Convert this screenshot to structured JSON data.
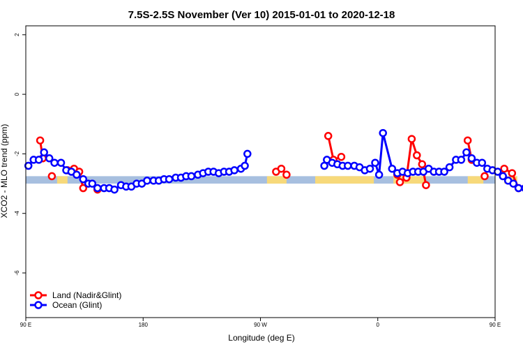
{
  "chart_data": {
    "type": "line",
    "title": "7.5S-2.5S November (Ver 10)   2015-01-01 to 2020-12-18",
    "xlabel": "Longitude (deg E)",
    "ylabel": "XCO2 - MLO trend (ppm)",
    "xlim": [
      90,
      450
    ],
    "ylim": [
      -7.5,
      2.3
    ],
    "x_ticks": [
      {
        "value": 90,
        "label": "90 E"
      },
      {
        "value": 180,
        "label": "180"
      },
      {
        "value": 270,
        "label": "90 W"
      },
      {
        "value": 360,
        "label": "0"
      },
      {
        "value": 450,
        "label": "90 E"
      },
      {
        "value": 540,
        "label": "180"
      }
    ],
    "y_ticks": [
      {
        "value": 2,
        "label": "2"
      },
      {
        "value": 0,
        "label": "0"
      },
      {
        "value": -2,
        "label": "-2"
      },
      {
        "value": -4,
        "label": "-4"
      },
      {
        "value": -6,
        "label": "-6"
      }
    ],
    "grid": false,
    "legend_position": "bottom-left",
    "band": {
      "y_min": -3.0,
      "y_max": -2.75,
      "ocean_color": "#A7BFDF",
      "land_color": "#F7D97A"
    },
    "land_segments": [
      [
        114,
        122
      ],
      [
        275,
        290
      ],
      [
        312,
        357
      ],
      [
        372,
        396
      ],
      [
        429,
        441
      ],
      [
        457,
        467
      ]
    ],
    "series": [
      {
        "name": "Land (Nadir&Glint)",
        "color": "#FF0000",
        "segments": [
          [
            [
              101,
              -1.55
            ],
            [
              103,
              -2.15
            ]
          ],
          [
            [
              110,
              -2.75
            ]
          ],
          [
            [
              122,
              -2.55
            ],
            [
              127,
              -2.5
            ],
            [
              131,
              -2.6
            ],
            [
              134,
              -3.15
            ]
          ],
          [
            [
              145,
              -3.2
            ]
          ],
          [
            [
              282,
              -2.6
            ],
            [
              286,
              -2.5
            ],
            [
              290,
              -2.7
            ]
          ],
          [
            [
              322,
              -1.4
            ],
            [
              326,
              -2.2
            ],
            [
              332,
              -2.1
            ]
          ],
          [
            [
              375,
              -2.7
            ],
            [
              377,
              -2.95
            ],
            [
              382,
              -2.8
            ],
            [
              386,
              -1.5
            ],
            [
              390,
              -2.05
            ],
            [
              394,
              -2.35
            ],
            [
              397,
              -3.05
            ]
          ],
          [
            [
              429,
              -1.55
            ],
            [
              432,
              -2.2
            ]
          ],
          [
            [
              442,
              -2.75
            ]
          ],
          [
            [
              457,
              -2.5
            ],
            [
              463,
              -2.65
            ],
            [
              468,
              -3.15
            ]
          ],
          [
            [
              475,
              -3.2
            ]
          ]
        ]
      },
      {
        "name": "Ocean (Glint)",
        "color": "#0000FF",
        "segments": [
          [
            [
              92,
              -2.4
            ],
            [
              96,
              -2.2
            ],
            [
              100,
              -2.2
            ],
            [
              104,
              -1.95
            ],
            [
              108,
              -2.15
            ],
            [
              112,
              -2.3
            ],
            [
              117,
              -2.3
            ],
            [
              121,
              -2.55
            ],
            [
              125,
              -2.6
            ],
            [
              129,
              -2.7
            ],
            [
              134,
              -2.85
            ],
            [
              138,
              -3.0
            ],
            [
              141,
              -3.0
            ],
            [
              145,
              -3.15
            ],
            [
              150,
              -3.15
            ],
            [
              154,
              -3.15
            ],
            [
              158,
              -3.2
            ],
            [
              163,
              -3.05
            ],
            [
              167,
              -3.1
            ],
            [
              171,
              -3.1
            ],
            [
              175,
              -3.0
            ],
            [
              179,
              -3.0
            ],
            [
              183,
              -2.9
            ],
            [
              188,
              -2.9
            ],
            [
              192,
              -2.9
            ],
            [
              196,
              -2.85
            ],
            [
              200,
              -2.85
            ],
            [
              205,
              -2.8
            ],
            [
              209,
              -2.8
            ],
            [
              213,
              -2.75
            ],
            [
              217,
              -2.75
            ],
            [
              222,
              -2.7
            ],
            [
              226,
              -2.65
            ],
            [
              230,
              -2.6
            ],
            [
              234,
              -2.6
            ],
            [
              238,
              -2.65
            ],
            [
              242,
              -2.6
            ],
            [
              246,
              -2.6
            ],
            [
              250,
              -2.55
            ],
            [
              255,
              -2.5
            ],
            [
              258,
              -2.4
            ],
            [
              260,
              -2.0
            ]
          ],
          [
            [
              319,
              -2.4
            ],
            [
              321,
              -2.2
            ],
            [
              325,
              -2.3
            ],
            [
              329,
              -2.35
            ],
            [
              333,
              -2.4
            ],
            [
              337,
              -2.4
            ],
            [
              342,
              -2.4
            ],
            [
              346,
              -2.45
            ],
            [
              350,
              -2.55
            ],
            [
              354,
              -2.5
            ],
            [
              358,
              -2.3
            ],
            [
              361,
              -2.7
            ],
            [
              364,
              -1.3
            ],
            [
              371,
              -2.5
            ],
            [
              375,
              -2.65
            ],
            [
              379,
              -2.6
            ],
            [
              383,
              -2.65
            ],
            [
              387,
              -2.6
            ],
            [
              391,
              -2.6
            ],
            [
              395,
              -2.6
            ],
            [
              399,
              -2.5
            ],
            [
              403,
              -2.6
            ],
            [
              407,
              -2.6
            ],
            [
              411,
              -2.6
            ],
            [
              415,
              -2.45
            ],
            [
              420,
              -2.2
            ],
            [
              424,
              -2.2
            ],
            [
              428,
              -1.95
            ],
            [
              432,
              -2.15
            ],
            [
              436,
              -2.3
            ],
            [
              440,
              -2.3
            ],
            [
              444,
              -2.5
            ],
            [
              448,
              -2.55
            ],
            [
              452,
              -2.6
            ],
            [
              456,
              -2.75
            ],
            [
              460,
              -2.9
            ],
            [
              464,
              -3.0
            ],
            [
              468,
              -3.15
            ],
            [
              473,
              -3.15
            ],
            [
              477,
              -3.15
            ],
            [
              481,
              -3.2
            ],
            [
              485,
              -3.1
            ]
          ]
        ]
      }
    ]
  }
}
